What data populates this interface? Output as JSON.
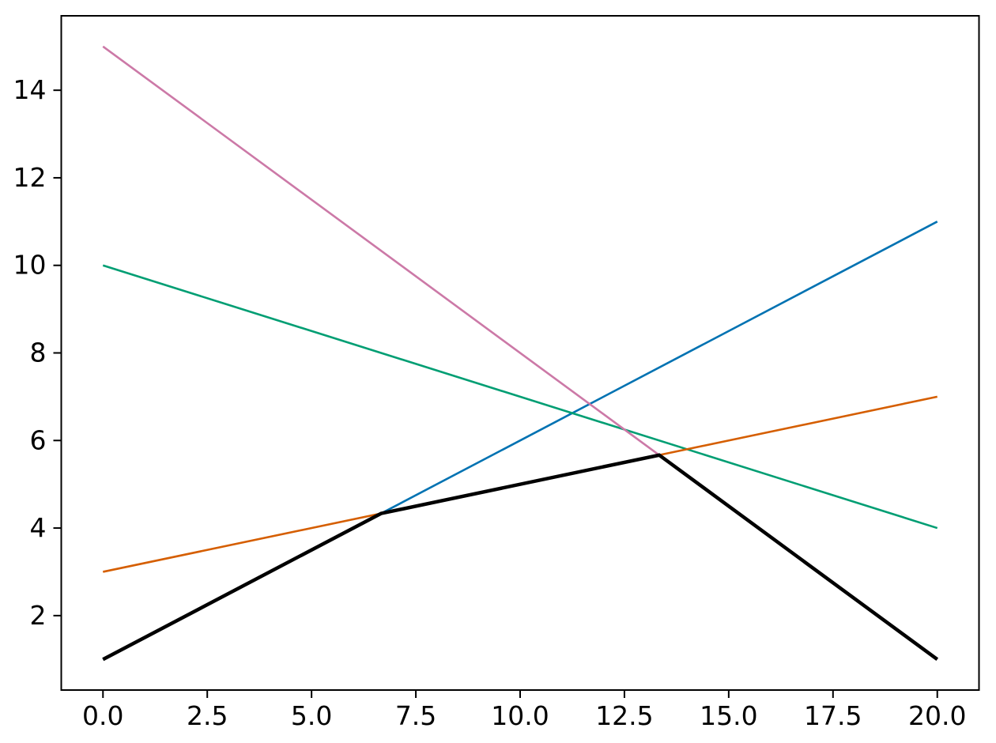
{
  "chart_data": {
    "type": "line",
    "title": "",
    "xlabel": "",
    "ylabel": "",
    "grid": false,
    "legend": "none",
    "background": "#ffffff",
    "axis_color": "#000000",
    "tick_label_color": "#000000",
    "xlim": [
      -1.0,
      21.0
    ],
    "ylim": [
      0.3,
      15.7
    ],
    "x_ticks": {
      "values": [
        0,
        2.5,
        5,
        7.5,
        10,
        12.5,
        15,
        17.5,
        20
      ],
      "labels": [
        "0.0",
        "2.5",
        "5.0",
        "7.5",
        "10.0",
        "12.5",
        "15.0",
        "17.5",
        "20.0"
      ]
    },
    "y_ticks": {
      "values": [
        2,
        4,
        6,
        8,
        10,
        12,
        14
      ],
      "labels": [
        "2",
        "4",
        "6",
        "8",
        "10",
        "12",
        "14"
      ]
    },
    "tick_length": 10,
    "tick_width": 2,
    "spine_width": 2,
    "series": [
      {
        "name": "blue-line",
        "color": "#0072B2",
        "width": 2.6,
        "x": [
          0,
          20
        ],
        "y": [
          1,
          11
        ]
      },
      {
        "name": "green-line",
        "color": "#009E73",
        "width": 2.6,
        "x": [
          0,
          20
        ],
        "y": [
          10,
          4
        ]
      },
      {
        "name": "orange-line",
        "color": "#D55E00",
        "width": 2.6,
        "x": [
          0,
          20
        ],
        "y": [
          3,
          7
        ]
      },
      {
        "name": "pink-line",
        "color": "#CC79A7",
        "width": 2.6,
        "x": [
          0,
          20
        ],
        "y": [
          15,
          1
        ]
      },
      {
        "name": "min-envelope-line",
        "color": "#000000",
        "width": 4.5,
        "x": [
          0,
          6.6667,
          13.3333,
          20
        ],
        "y": [
          1,
          4.3333,
          5.6667,
          1
        ]
      }
    ]
  }
}
